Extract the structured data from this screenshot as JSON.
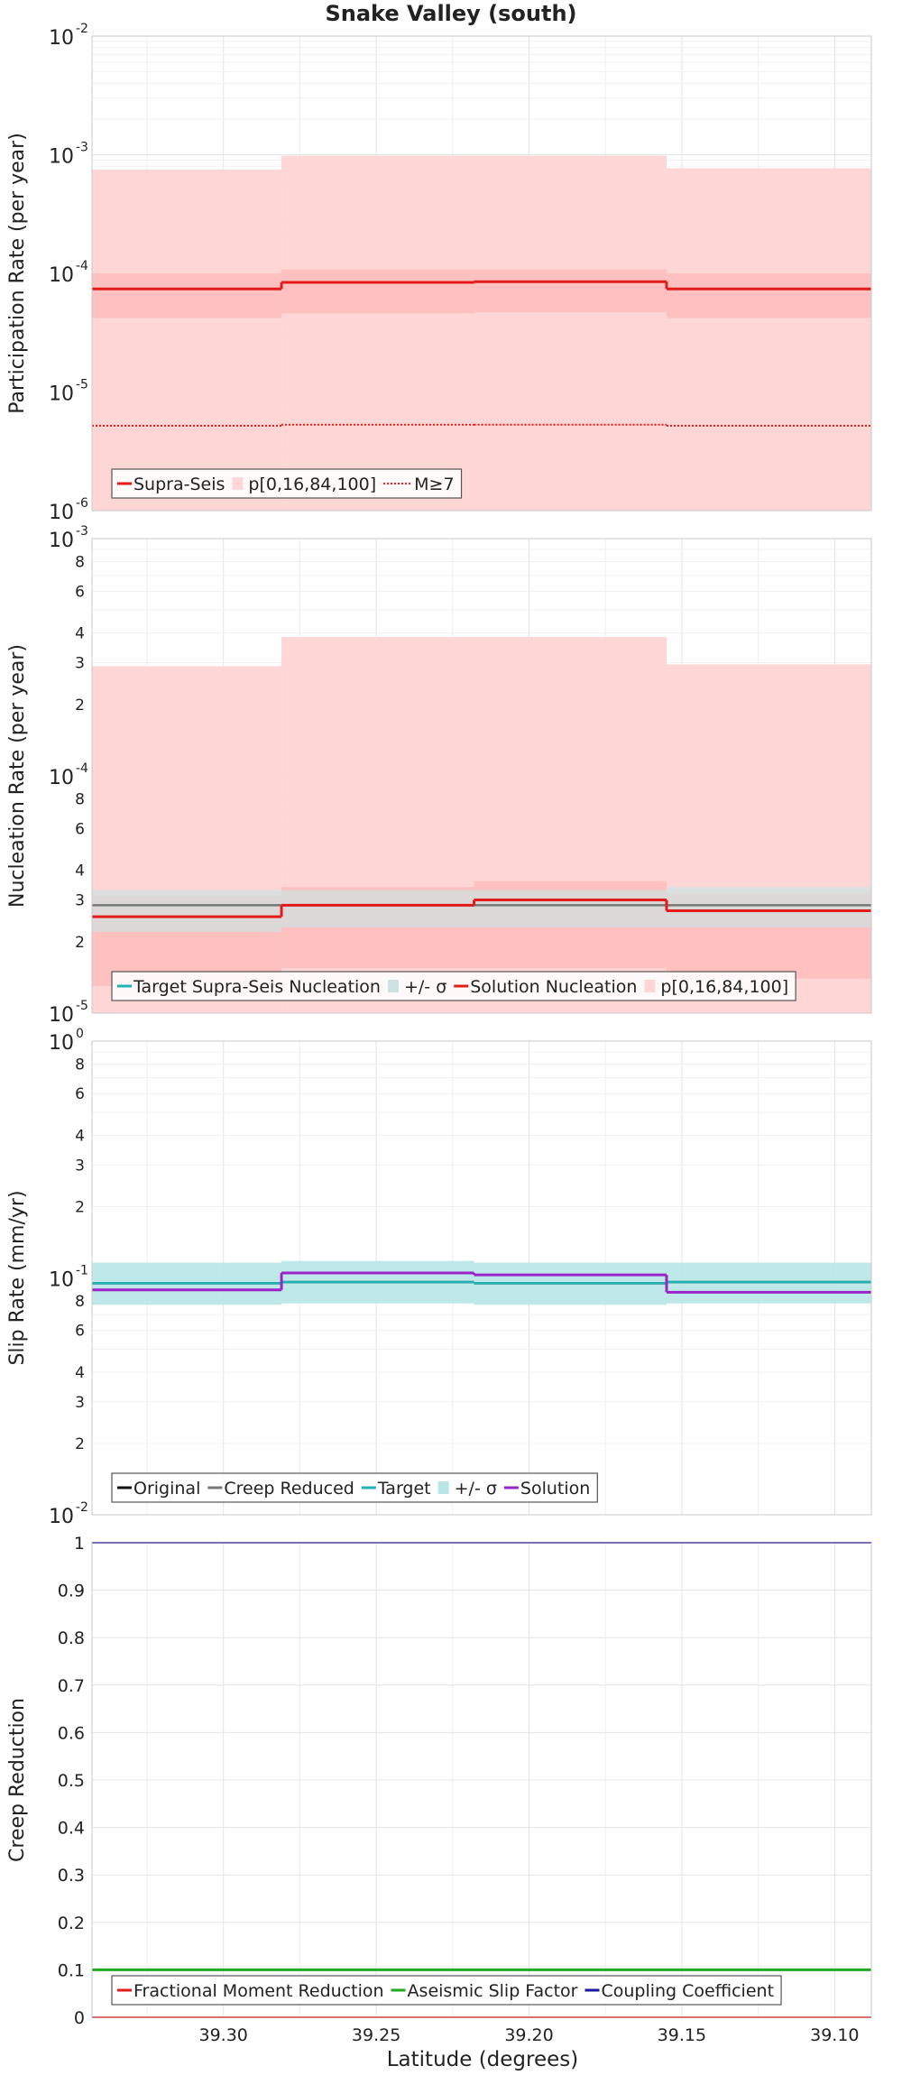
{
  "figure": {
    "title": "Snake Valley (south)",
    "xlabel": "Latitude (degrees)"
  },
  "colors": {
    "supra": "#e31b1b",
    "band": "#ffd6d6",
    "band_inner": "#ffb8b8",
    "target": "#1fb3b3",
    "target_band": "#b8e6e6",
    "sigma_band": "#cde3e3",
    "creep": "#777777",
    "solution_slip": "#9a24c8",
    "aseismic": "#22aa22",
    "coupling": "#1a1aa0",
    "grid": "#e4e4e4"
  },
  "x_axis": {
    "xlim": [
      39.343,
      39.088
    ],
    "ticks": [
      "39.30",
      "39.25",
      "39.20",
      "39.15",
      "39.10"
    ],
    "tick_values": [
      39.3,
      39.25,
      39.2,
      39.15,
      39.1
    ]
  },
  "chart_data": [
    {
      "type": "line",
      "id": "participation",
      "ylabel": "Participation Rate (per year)",
      "yscale": "log",
      "ylim": [
        1e-06,
        0.01
      ],
      "y_ticks": [
        {
          "base": "10",
          "exp": "-2",
          "v": 0.01
        },
        {
          "base": "10",
          "exp": "-3",
          "v": 0.001
        },
        {
          "base": "10",
          "exp": "-4",
          "v": 0.0001
        },
        {
          "base": "10",
          "exp": "-5",
          "v": 1e-05
        },
        {
          "base": "10",
          "exp": "-6",
          "v": 1e-06
        }
      ],
      "minor_ticks": [],
      "segments": [
        [
          39.343,
          39.281
        ],
        [
          39.281,
          39.218
        ],
        [
          39.218,
          39.155
        ],
        [
          39.155,
          39.088
        ]
      ],
      "series": [
        {
          "name": "p[0,16,84,100]",
          "style": "band",
          "lo": [
            1e-06,
            1e-06,
            1e-06,
            1e-06
          ],
          "hi": [
            0.00075,
            0.00098,
            0.00098,
            0.00077
          ]
        },
        {
          "name": "",
          "style": "band_inner",
          "lo": [
            4.2e-05,
            4.6e-05,
            4.7e-05,
            4.2e-05
          ],
          "hi": [
            0.0001,
            0.000108,
            0.000108,
            0.0001
          ]
        },
        {
          "name": "Supra-Seis",
          "style": "step",
          "values": [
            7.4e-05,
            8.4e-05,
            8.5e-05,
            7.4e-05
          ]
        },
        {
          "name": "M≥7",
          "style": "dotted",
          "values": [
            5.2e-06,
            5.3e-06,
            5.3e-06,
            5.2e-06
          ]
        }
      ],
      "legend": [
        {
          "label": "Supra-Seis",
          "swatch": "line",
          "color": "#e31b1b"
        },
        {
          "label": "p[0,16,84,100]",
          "swatch": "box",
          "color": "#ffd6d6"
        },
        {
          "label": "M≥7",
          "swatch": "dots",
          "color": "#e31b1b"
        }
      ]
    },
    {
      "type": "line",
      "id": "nucleation",
      "ylabel": "Nucleation Rate (per year)",
      "yscale": "log",
      "ylim": [
        1e-05,
        0.001
      ],
      "y_ticks": [
        {
          "base": "10",
          "exp": "-3",
          "v": 0.001
        },
        {
          "base": "10",
          "exp": "-4",
          "v": 0.0001
        },
        {
          "base": "10",
          "exp": "-5",
          "v": 1e-05
        }
      ],
      "minor_ticks": [
        {
          "label": "8",
          "v": 0.0008
        },
        {
          "label": "6",
          "v": 0.0006
        },
        {
          "label": "4",
          "v": 0.0004
        },
        {
          "label": "3",
          "v": 0.0003
        },
        {
          "label": "2",
          "v": 0.0002
        },
        {
          "label": "8",
          "v": 8e-05
        },
        {
          "label": "6",
          "v": 6e-05
        },
        {
          "label": "4",
          "v": 4e-05
        },
        {
          "label": "3",
          "v": 3e-05
        },
        {
          "label": "2",
          "v": 2e-05
        }
      ],
      "segments": [
        [
          39.343,
          39.281
        ],
        [
          39.281,
          39.218
        ],
        [
          39.218,
          39.155
        ],
        [
          39.155,
          39.088
        ]
      ],
      "series": [
        {
          "name": "p[0,16,84,100]",
          "style": "band",
          "lo": [
            1e-05,
            1e-05,
            1e-05,
            1e-05
          ],
          "hi": [
            0.00029,
            0.000385,
            0.000385,
            0.000295
          ]
        },
        {
          "name": "",
          "style": "band_inner",
          "lo": [
            1.3e-05,
            1.55e-05,
            1.55e-05,
            1.4e-05
          ],
          "hi": [
            3.1e-05,
            3.4e-05,
            3.6e-05,
            3.2e-05
          ]
        },
        {
          "name": "+/- σ",
          "style": "sigma",
          "lo": [
            2.2e-05,
            2.3e-05,
            2.3e-05,
            2.3e-05
          ],
          "hi": [
            3.3e-05,
            3.3e-05,
            3.3e-05,
            3.4e-05
          ]
        },
        {
          "name": "Target Supra-Seis Nucleation",
          "style": "creep_line",
          "values": [
            2.85e-05,
            2.85e-05,
            2.85e-05,
            2.85e-05
          ]
        },
        {
          "name": "Solution Nucleation",
          "style": "step",
          "values": [
            2.55e-05,
            2.85e-05,
            3e-05,
            2.7e-05
          ]
        }
      ],
      "legend": [
        {
          "label": "Target Supra-Seis Nucleation",
          "swatch": "line",
          "color": "#1fb3b3"
        },
        {
          "label": "+/- σ",
          "swatch": "box",
          "color": "#cde3e3"
        },
        {
          "label": "Solution Nucleation",
          "swatch": "line",
          "color": "#e31b1b"
        },
        {
          "label": "p[0,16,84,100]",
          "swatch": "box",
          "color": "#ffd6d6"
        }
      ]
    },
    {
      "type": "line",
      "id": "sliprate",
      "ylabel": "Slip Rate (mm/yr)",
      "yscale": "log",
      "ylim": [
        0.01,
        1
      ],
      "y_ticks": [
        {
          "base": "10",
          "exp": "0",
          "v": 1
        },
        {
          "base": "10",
          "exp": "-1",
          "v": 0.1
        },
        {
          "base": "10",
          "exp": "-2",
          "v": 0.01
        }
      ],
      "minor_ticks": [
        {
          "label": "8",
          "v": 0.8
        },
        {
          "label": "6",
          "v": 0.6
        },
        {
          "label": "4",
          "v": 0.4
        },
        {
          "label": "3",
          "v": 0.3
        },
        {
          "label": "2",
          "v": 0.2
        },
        {
          "label": "8",
          "v": 0.08
        },
        {
          "label": "6",
          "v": 0.06
        },
        {
          "label": "4",
          "v": 0.04
        },
        {
          "label": "3",
          "v": 0.03
        },
        {
          "label": "2",
          "v": 0.02
        }
      ],
      "segments": [
        [
          39.343,
          39.281
        ],
        [
          39.281,
          39.218
        ],
        [
          39.218,
          39.155
        ],
        [
          39.155,
          39.088
        ]
      ],
      "series": [
        {
          "name": "+/- σ",
          "style": "target_band",
          "lo": [
            0.077,
            0.078,
            0.077,
            0.078
          ],
          "hi": [
            0.116,
            0.118,
            0.116,
            0.116
          ]
        },
        {
          "name": "Original",
          "style": "original_line",
          "values": [
            0.095,
            0.096,
            0.095,
            0.096
          ]
        },
        {
          "name": "Creep Reduced",
          "style": "creep_line",
          "values": [
            0.095,
            0.096,
            0.095,
            0.096
          ]
        },
        {
          "name": "Target",
          "style": "target_line",
          "values": [
            0.095,
            0.096,
            0.095,
            0.096
          ]
        },
        {
          "name": "Solution",
          "style": "solution_line",
          "values": [
            0.089,
            0.105,
            0.103,
            0.087
          ]
        }
      ],
      "legend": [
        {
          "label": "Original",
          "swatch": "line",
          "color": "#111111"
        },
        {
          "label": "Creep Reduced",
          "swatch": "line",
          "color": "#777777"
        },
        {
          "label": "Target",
          "swatch": "line",
          "color": "#1fb3b3"
        },
        {
          "label": "+/- σ",
          "swatch": "box",
          "color": "#b8e6e6"
        },
        {
          "label": "Solution",
          "swatch": "line",
          "color": "#9a24c8"
        }
      ]
    },
    {
      "type": "line",
      "id": "creep",
      "ylabel": "Creep Reduction",
      "yscale": "linear",
      "ylim": [
        0,
        1
      ],
      "y_ticks": [
        {
          "base": "1",
          "exp": "",
          "v": 1
        },
        {
          "base": "0.9",
          "exp": "",
          "v": 0.9
        },
        {
          "base": "0.8",
          "exp": "",
          "v": 0.8
        },
        {
          "base": "0.7",
          "exp": "",
          "v": 0.7
        },
        {
          "base": "0.6",
          "exp": "",
          "v": 0.6
        },
        {
          "base": "0.5",
          "exp": "",
          "v": 0.5
        },
        {
          "base": "0.4",
          "exp": "",
          "v": 0.4
        },
        {
          "base": "0.3",
          "exp": "",
          "v": 0.3
        },
        {
          "base": "0.2",
          "exp": "",
          "v": 0.2
        },
        {
          "base": "0.1",
          "exp": "",
          "v": 0.1
        },
        {
          "base": "0",
          "exp": "",
          "v": 0
        }
      ],
      "minor_ticks": [],
      "segments": [
        [
          39.343,
          39.088
        ]
      ],
      "series": [
        {
          "name": "Fractional Moment Reduction",
          "style": "supra_line",
          "values": [
            0
          ]
        },
        {
          "name": "Aseismic Slip Factor",
          "style": "aseismic_line",
          "values": [
            0.1
          ]
        },
        {
          "name": "Coupling Coefficient",
          "style": "coupling_line",
          "values": [
            1.0
          ]
        }
      ],
      "legend": [
        {
          "label": "Fractional Moment Reduction",
          "swatch": "line",
          "color": "#e31b1b"
        },
        {
          "label": "Aseismic Slip Factor",
          "swatch": "line",
          "color": "#22aa22"
        },
        {
          "label": "Coupling Coefficient",
          "swatch": "line",
          "color": "#1a1aa0"
        }
      ]
    }
  ]
}
